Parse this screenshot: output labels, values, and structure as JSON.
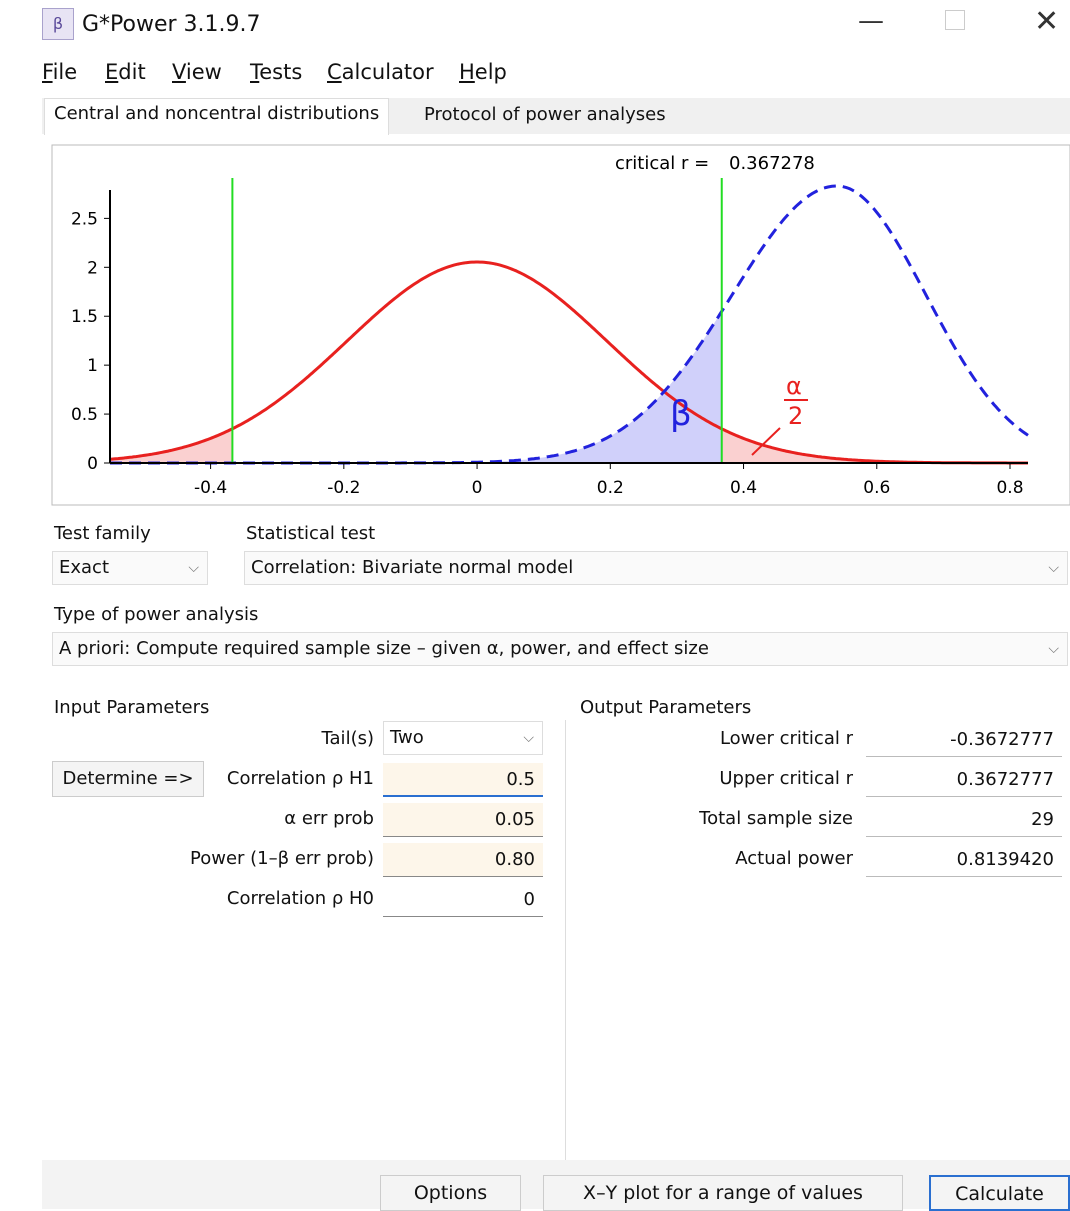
{
  "window": {
    "title": "G*Power 3.1.9.7"
  },
  "menu": [
    "File",
    "Edit",
    "View",
    "Tests",
    "Calculator",
    "Help"
  ],
  "tabs": [
    "Central and noncentral distributions",
    "Protocol of power analyses"
  ],
  "chart_data": {
    "type": "distribution",
    "critical_label": "critical r =",
    "critical_value": 0.367278,
    "xlim": [
      -0.551,
      0.827
    ],
    "ylim": [
      0,
      2.79
    ],
    "xticks": [
      -0.4,
      -0.2,
      0,
      0.2,
      0.4,
      0.6,
      0.8
    ],
    "yticks": [
      0,
      0.5,
      1,
      1.5,
      2,
      2.5
    ],
    "annotations": {
      "beta": "β",
      "alpha": "α",
      "two": "2"
    }
  },
  "test_family": {
    "label": "Test family",
    "value": "Exact"
  },
  "statistical_test": {
    "label": "Statistical test",
    "value": "Correlation: Bivariate normal model"
  },
  "power_analysis": {
    "label": "Type of power analysis",
    "value": "A priori: Compute required sample size – given α, power, and effect size"
  },
  "input": {
    "title": "Input Parameters",
    "determine": "Determine =>",
    "rows": [
      [
        "Tail(s)",
        "Two"
      ],
      [
        "Correlation ρ H1",
        "0.5"
      ],
      [
        "α err prob",
        "0.05"
      ],
      [
        "Power (1–β err prob)",
        "0.80"
      ],
      [
        "Correlation ρ H0",
        "0"
      ]
    ]
  },
  "output": {
    "title": "Output Parameters",
    "rows": [
      [
        "Lower critical r",
        "-0.3672777"
      ],
      [
        "Upper critical r",
        "0.3672777"
      ],
      [
        "Total sample size",
        "29"
      ],
      [
        "Actual power",
        "0.8139420"
      ]
    ]
  },
  "buttons": [
    "Options",
    "X–Y plot for a range of values",
    "Calculate"
  ]
}
